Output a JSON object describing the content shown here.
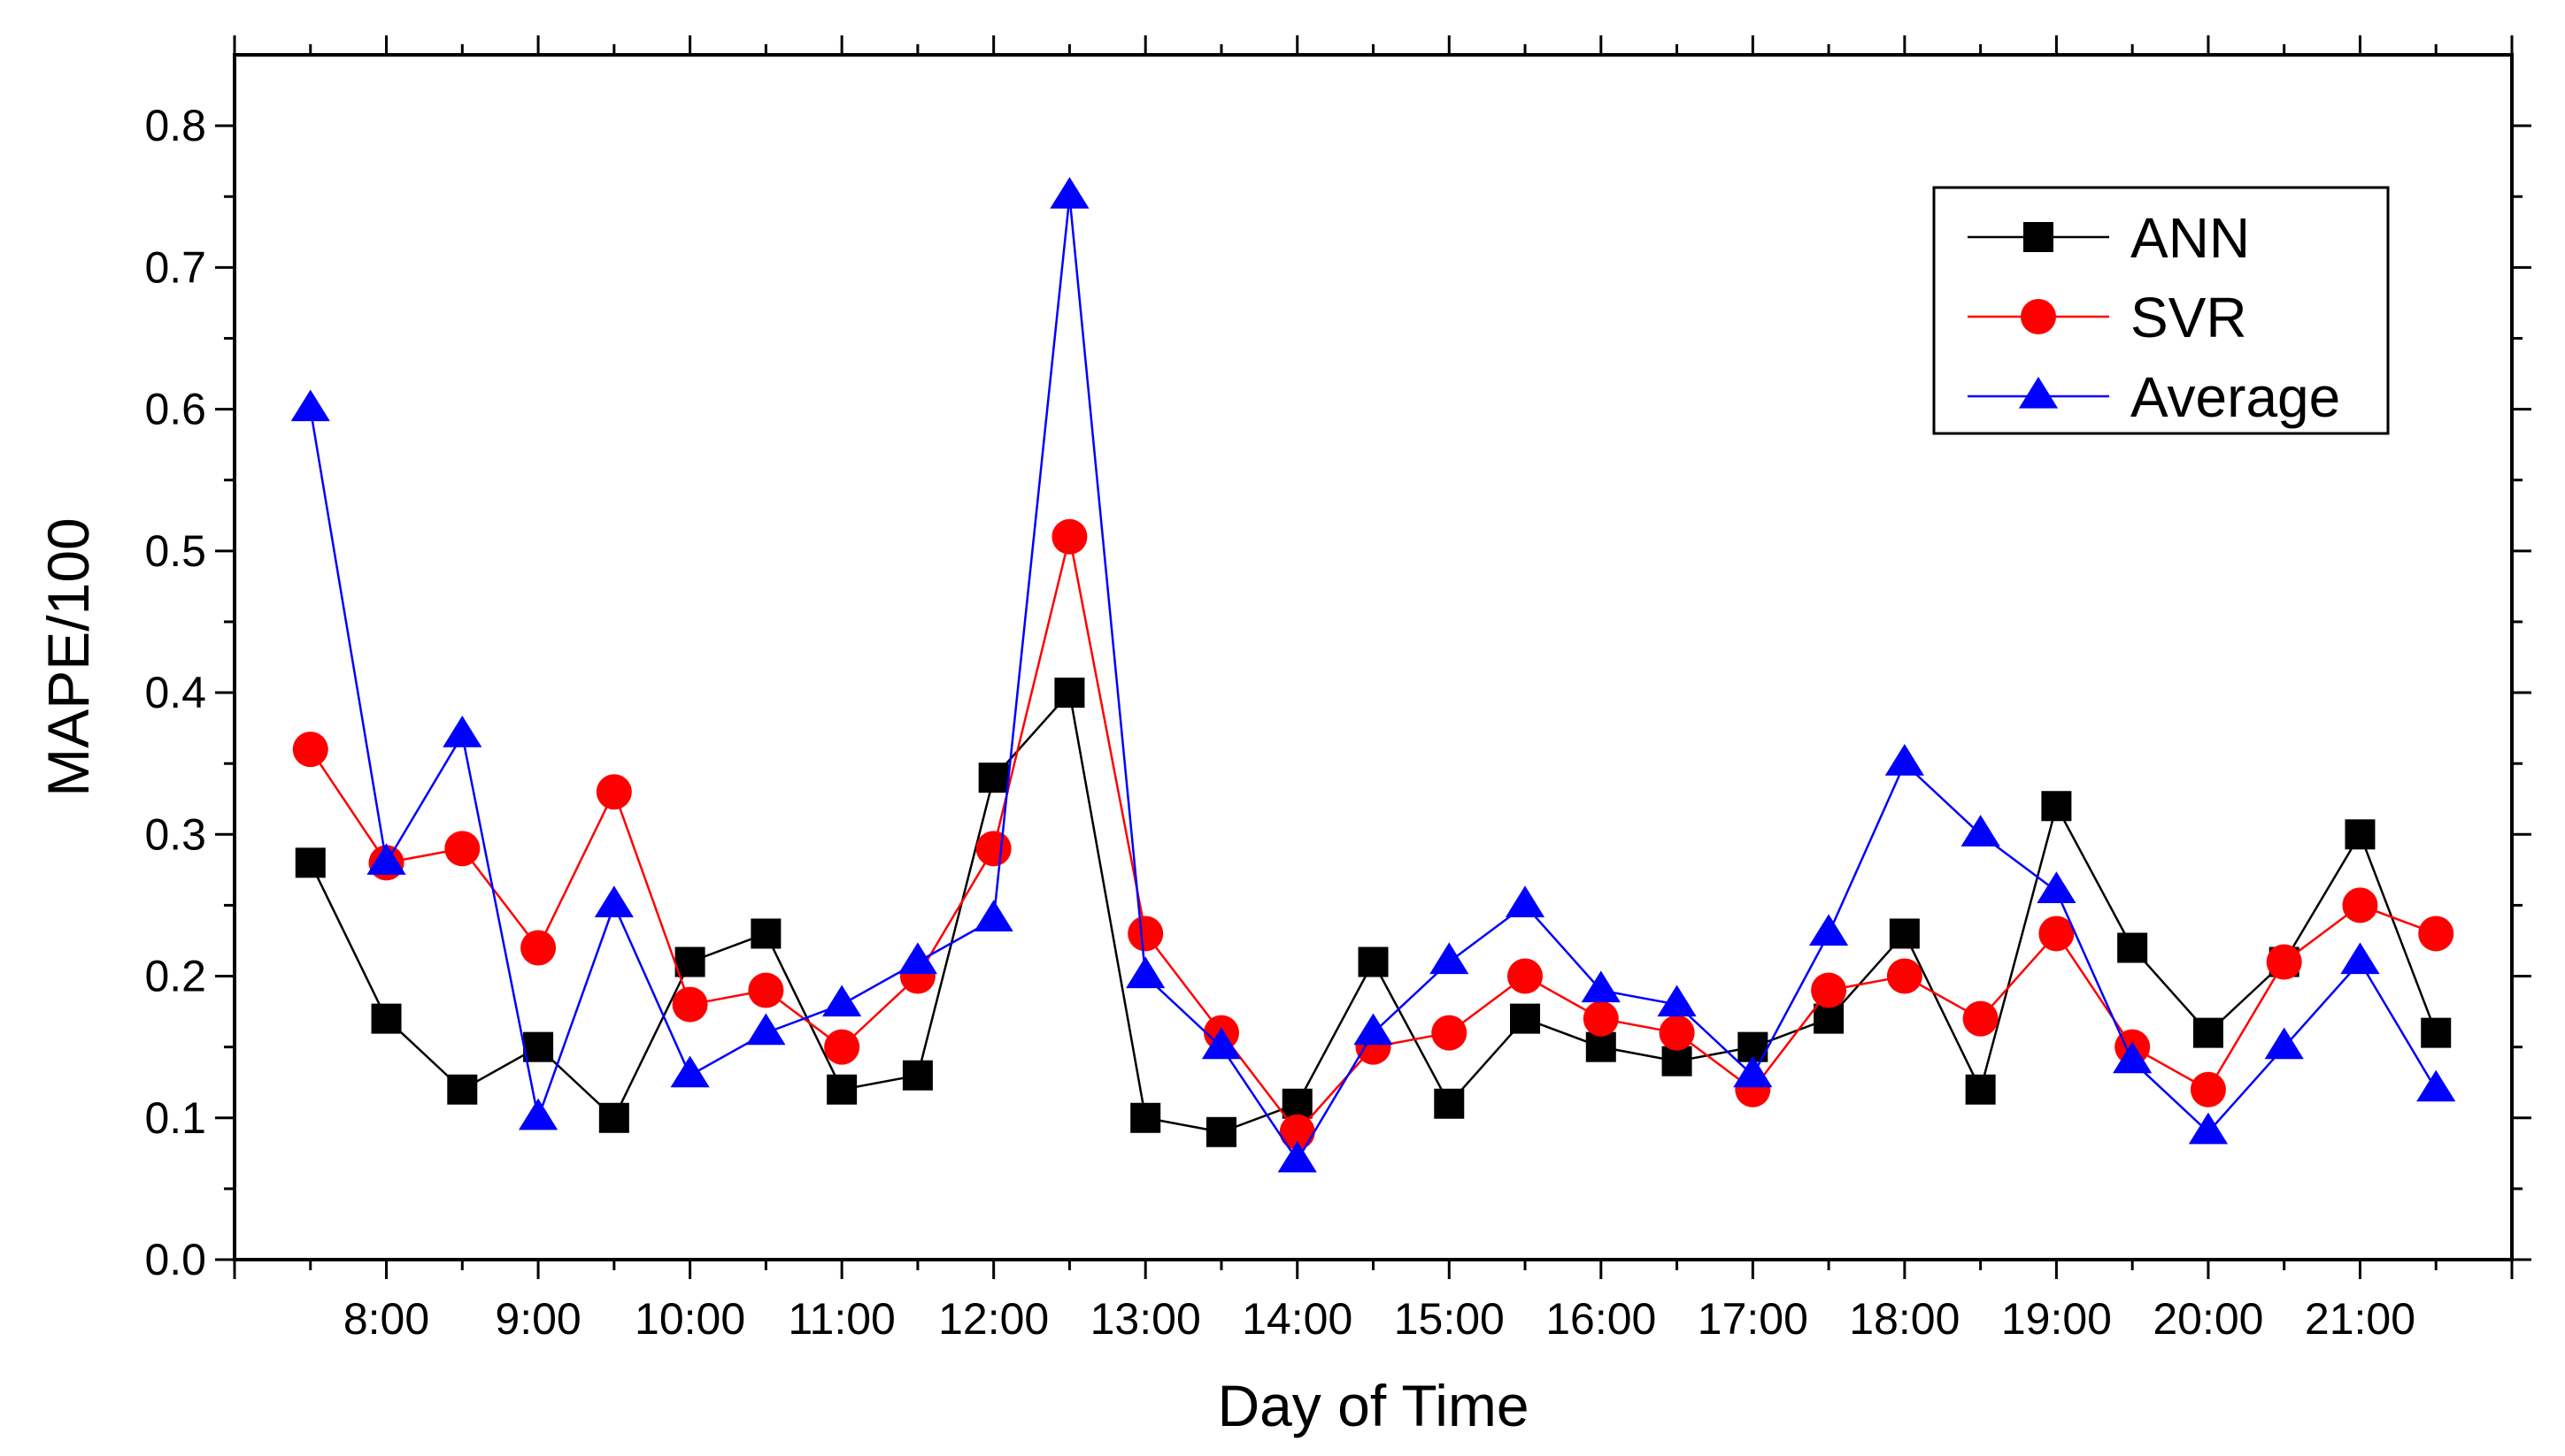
{
  "chart_data": {
    "type": "line",
    "title": "",
    "xlabel": "Day of Time",
    "ylabel": "MAPE/100",
    "ylim": [
      0.0,
      0.85
    ],
    "xlim": [
      7.0,
      22.0
    ],
    "y_ticks": [
      0.0,
      0.1,
      0.2,
      0.3,
      0.4,
      0.5,
      0.6,
      0.7,
      0.8
    ],
    "y_tick_labels": [
      "0.0",
      "0.1",
      "0.2",
      "0.3",
      "0.4",
      "0.5",
      "0.6",
      "0.7",
      "0.8"
    ],
    "x_tick_values": [
      8,
      9,
      10,
      11,
      12,
      13,
      14,
      15,
      16,
      17,
      18,
      19,
      20,
      21
    ],
    "x_tick_labels": [
      "8:00",
      "9:00",
      "10:00",
      "11:00",
      "12:00",
      "13:00",
      "14:00",
      "15:00",
      "16:00",
      "17:00",
      "18:00",
      "19:00",
      "20:00",
      "21:00"
    ],
    "x": [
      7.5,
      8.0,
      8.5,
      9.0,
      9.5,
      10.0,
      10.5,
      11.0,
      11.5,
      12.0,
      12.5,
      13.0,
      13.5,
      14.0,
      14.5,
      15.0,
      15.5,
      16.0,
      16.5,
      17.0,
      17.5,
      18.0,
      18.5,
      19.0,
      19.5,
      20.0,
      20.5,
      21.0,
      21.5
    ],
    "legend_position": "top-right",
    "grid": false,
    "series": [
      {
        "name": "ANN",
        "color": "#000000",
        "marker": "square",
        "values": [
          0.28,
          0.17,
          0.12,
          0.15,
          0.1,
          0.21,
          0.23,
          0.12,
          0.13,
          0.34,
          0.4,
          0.1,
          0.09,
          0.11,
          0.21,
          0.11,
          0.17,
          0.15,
          0.14,
          0.15,
          0.17,
          0.23,
          0.12,
          0.32,
          0.22,
          0.16,
          0.21,
          0.3,
          0.16
        ]
      },
      {
        "name": "SVR",
        "color": "#ff0000",
        "marker": "circle",
        "values": [
          0.36,
          0.28,
          0.29,
          0.22,
          0.33,
          0.18,
          0.19,
          0.15,
          0.2,
          0.29,
          0.51,
          0.23,
          0.16,
          0.09,
          0.15,
          0.16,
          0.2,
          0.17,
          0.16,
          0.12,
          0.19,
          0.2,
          0.17,
          0.23,
          0.15,
          0.12,
          0.21,
          0.25,
          0.23
        ]
      },
      {
        "name": "Average",
        "color": "#0000ff",
        "marker": "triangle",
        "values": [
          0.6,
          0.28,
          0.37,
          0.1,
          0.25,
          0.13,
          0.16,
          0.18,
          0.21,
          0.24,
          0.75,
          0.2,
          0.15,
          0.07,
          0.16,
          0.21,
          0.25,
          0.19,
          0.18,
          0.13,
          0.23,
          0.35,
          0.3,
          0.26,
          0.14,
          0.09,
          0.15,
          0.21,
          0.12
        ]
      }
    ]
  }
}
